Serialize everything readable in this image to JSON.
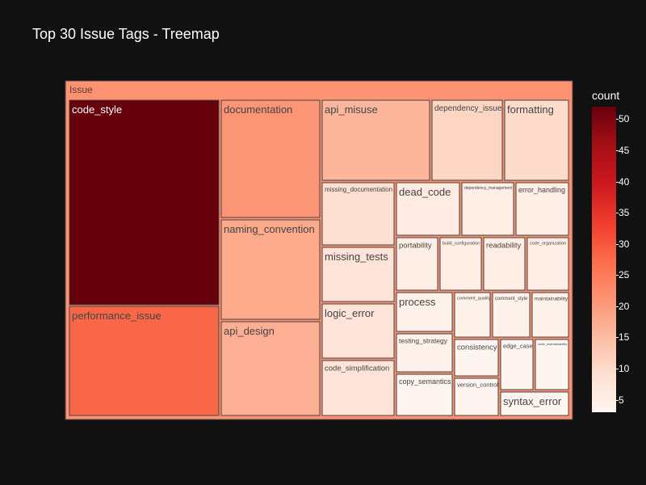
{
  "title": "Top 30 Issue Tags - Treemap",
  "colorbar": {
    "title": "count",
    "ticks": [
      "50",
      "45",
      "40",
      "35",
      "30",
      "25",
      "20",
      "15",
      "10",
      "5"
    ],
    "colors": [
      "#fff5f0",
      "#fee0d2",
      "#fcbba1",
      "#fc9272",
      "#fb6a4a",
      "#ef3b2c",
      "#cb181d",
      "#a50f15",
      "#67000d"
    ]
  },
  "chart_data": {
    "type": "treemap",
    "root": "Issue",
    "colorscale": "Reds",
    "value_range": [
      3,
      52
    ],
    "items": [
      {
        "label": "code_style",
        "value": 52
      },
      {
        "label": "performance_issue",
        "value": 28
      },
      {
        "label": "documentation",
        "value": 21
      },
      {
        "label": "naming_convention",
        "value": 18
      },
      {
        "label": "api_design",
        "value": 17
      },
      {
        "label": "api_misuse",
        "value": 16
      },
      {
        "label": "dependency_issue",
        "value": 11
      },
      {
        "label": "formatting",
        "value": 10
      },
      {
        "label": "missing_documentation",
        "value": 9
      },
      {
        "label": "missing_tests",
        "value": 8
      },
      {
        "label": "logic_error",
        "value": 8
      },
      {
        "label": "code_simplification",
        "value": 8
      },
      {
        "label": "dead_code",
        "value": 6
      },
      {
        "label": "dependency_management",
        "value": 5
      },
      {
        "label": "error_handling",
        "value": 5
      },
      {
        "label": "portability",
        "value": 5
      },
      {
        "label": "build_configuration",
        "value": 5
      },
      {
        "label": "readability",
        "value": 5
      },
      {
        "label": "code_organization",
        "value": 5
      },
      {
        "label": "process",
        "value": 4
      },
      {
        "label": "comment_quality",
        "value": 4
      },
      {
        "label": "comment_style",
        "value": 4
      },
      {
        "label": "maintainability",
        "value": 4
      },
      {
        "label": "testing_strategy",
        "value": 4
      },
      {
        "label": "consistency",
        "value": 3
      },
      {
        "label": "edge_case",
        "value": 3
      },
      {
        "label": "code_maintainability",
        "value": 3
      },
      {
        "label": "copy_semantics",
        "value": 3
      },
      {
        "label": "version_control",
        "value": 3
      },
      {
        "label": "syntax_error",
        "value": 3
      }
    ]
  }
}
